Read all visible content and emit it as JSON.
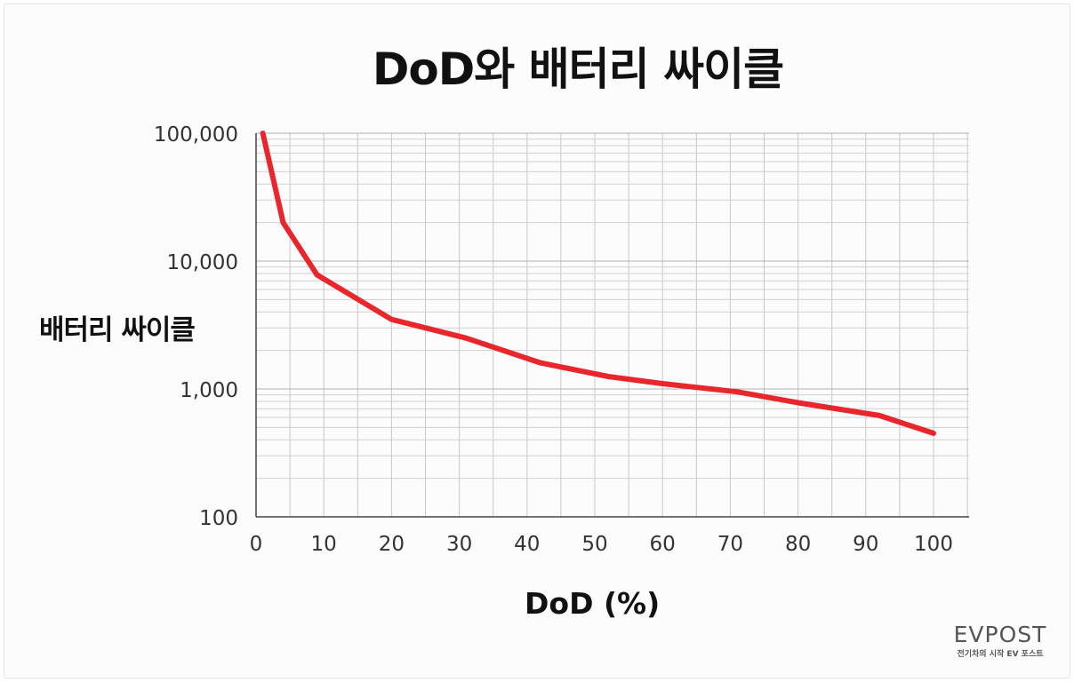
{
  "title": "DoD와 배터리 싸이클",
  "watermark": {
    "main": "EVPOST",
    "sub": "전기차의 시작 EV 포스트"
  },
  "chart_data": {
    "type": "line",
    "title": "DoD와 배터리 싸이클",
    "xlabel": "DoD (%)",
    "ylabel": "배터리 싸이클",
    "xlim": [
      0,
      100
    ],
    "ylim": [
      100,
      100000
    ],
    "yscale": "log",
    "grid": true,
    "x_ticks": [
      "0",
      "10",
      "20",
      "30",
      "40",
      "50",
      "60",
      "70",
      "80",
      "90",
      "100"
    ],
    "y_ticks": [
      "100",
      "1,000",
      "10,000",
      "100,000"
    ],
    "line_color": "#e8262b",
    "series": [
      {
        "x": [
          1,
          4,
          9,
          20,
          31,
          42,
          52,
          60,
          71,
          80,
          92,
          100
        ],
        "values": [
          100000,
          20000,
          7800,
          3500,
          2500,
          1600,
          1250,
          1100,
          950,
          780,
          620,
          450
        ]
      }
    ]
  }
}
